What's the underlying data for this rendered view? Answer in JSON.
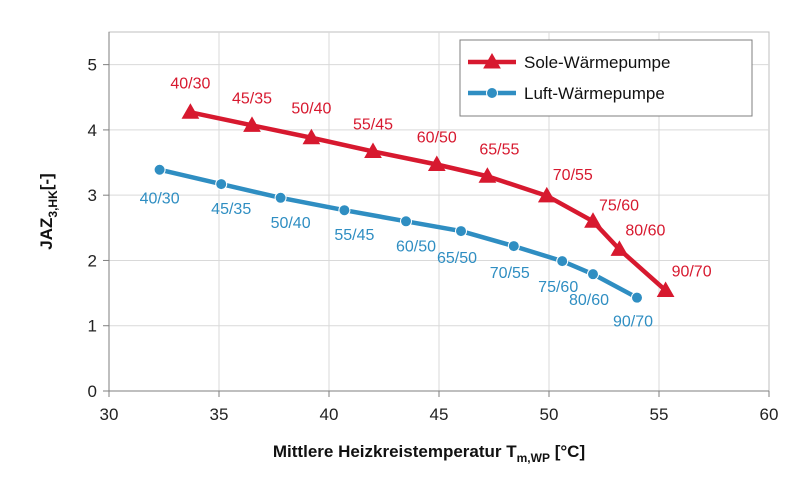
{
  "chart_data": {
    "type": "line",
    "title": "",
    "xlabel": {
      "main": "Mittlere Heizkreistemperatur T",
      "sub": "m,WP",
      "suffix": " [°C]"
    },
    "ylabel": {
      "main": "JAZ",
      "sub": "3,HK",
      "suffix": "[-]"
    },
    "xlim": [
      30,
      60
    ],
    "ylim": [
      0,
      5.5
    ],
    "xticks": [
      30,
      35,
      40,
      45,
      50,
      55,
      60
    ],
    "yticks": [
      0,
      1,
      2,
      3,
      4,
      5
    ],
    "grid": true,
    "legend_position": "top-right",
    "series": [
      {
        "name": "Sole-Wärmepumpe",
        "color": "#d7192f",
        "marker": "triangle",
        "x": [
          33.7,
          36.5,
          39.2,
          42.0,
          44.9,
          47.2,
          49.9,
          52.0,
          53.2,
          55.3
        ],
        "y": [
          4.27,
          4.07,
          3.88,
          3.67,
          3.47,
          3.29,
          2.99,
          2.6,
          2.17,
          1.54
        ],
        "labels": [
          "40/30",
          "45/35",
          "50/40",
          "55/45",
          "60/50",
          "65/55",
          "70/55",
          "75/60",
          "80/60",
          "90/70"
        ]
      },
      {
        "name": "Luft-Wärmepumpe",
        "color": "#2f8ec2",
        "marker": "circle",
        "x": [
          32.3,
          35.1,
          37.8,
          40.7,
          43.5,
          46.0,
          48.4,
          50.6,
          52.0,
          54.0
        ],
        "y": [
          3.39,
          3.17,
          2.96,
          2.77,
          2.6,
          2.45,
          2.22,
          1.99,
          1.79,
          1.43
        ],
        "labels": [
          "40/30",
          "45/35",
          "50/40",
          "55/45",
          "60/50",
          "65/50",
          "70/55",
          "75/60",
          "80/60",
          "90/70"
        ]
      }
    ]
  }
}
